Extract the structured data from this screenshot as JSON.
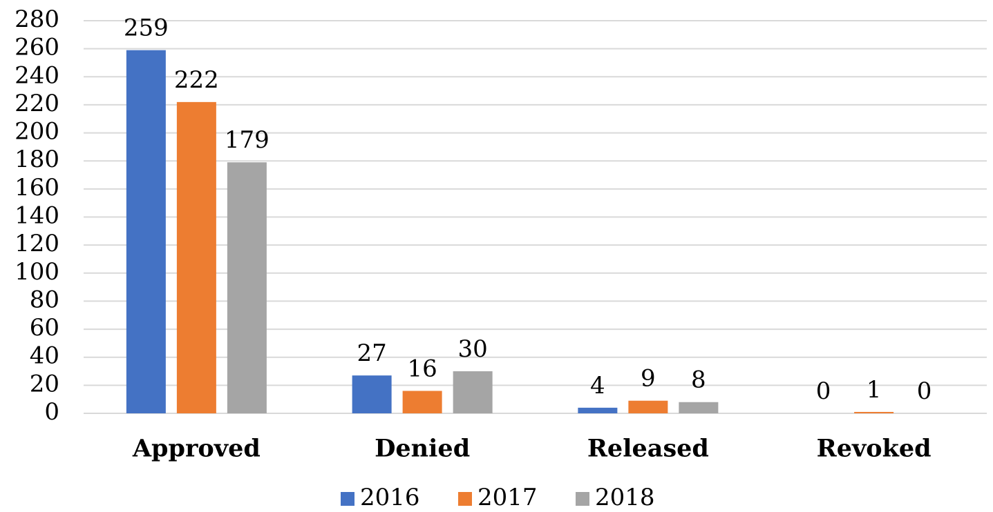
{
  "chart_data": {
    "type": "bar",
    "categories": [
      "Approved",
      "Denied",
      "Released",
      "Revoked"
    ],
    "series": [
      {
        "name": "2016",
        "color": "#4472c4",
        "values": [
          259,
          27,
          4,
          0
        ]
      },
      {
        "name": "2017",
        "color": "#ed7d31",
        "values": [
          222,
          16,
          9,
          1
        ]
      },
      {
        "name": "2018",
        "color": "#a5a5a5",
        "values": [
          179,
          30,
          8,
          0
        ]
      }
    ],
    "ylim": [
      0,
      280
    ],
    "yticks": [
      0,
      20,
      40,
      60,
      80,
      100,
      120,
      140,
      160,
      180,
      200,
      220,
      240,
      260,
      280
    ],
    "grid": true,
    "legend": "bottom"
  }
}
